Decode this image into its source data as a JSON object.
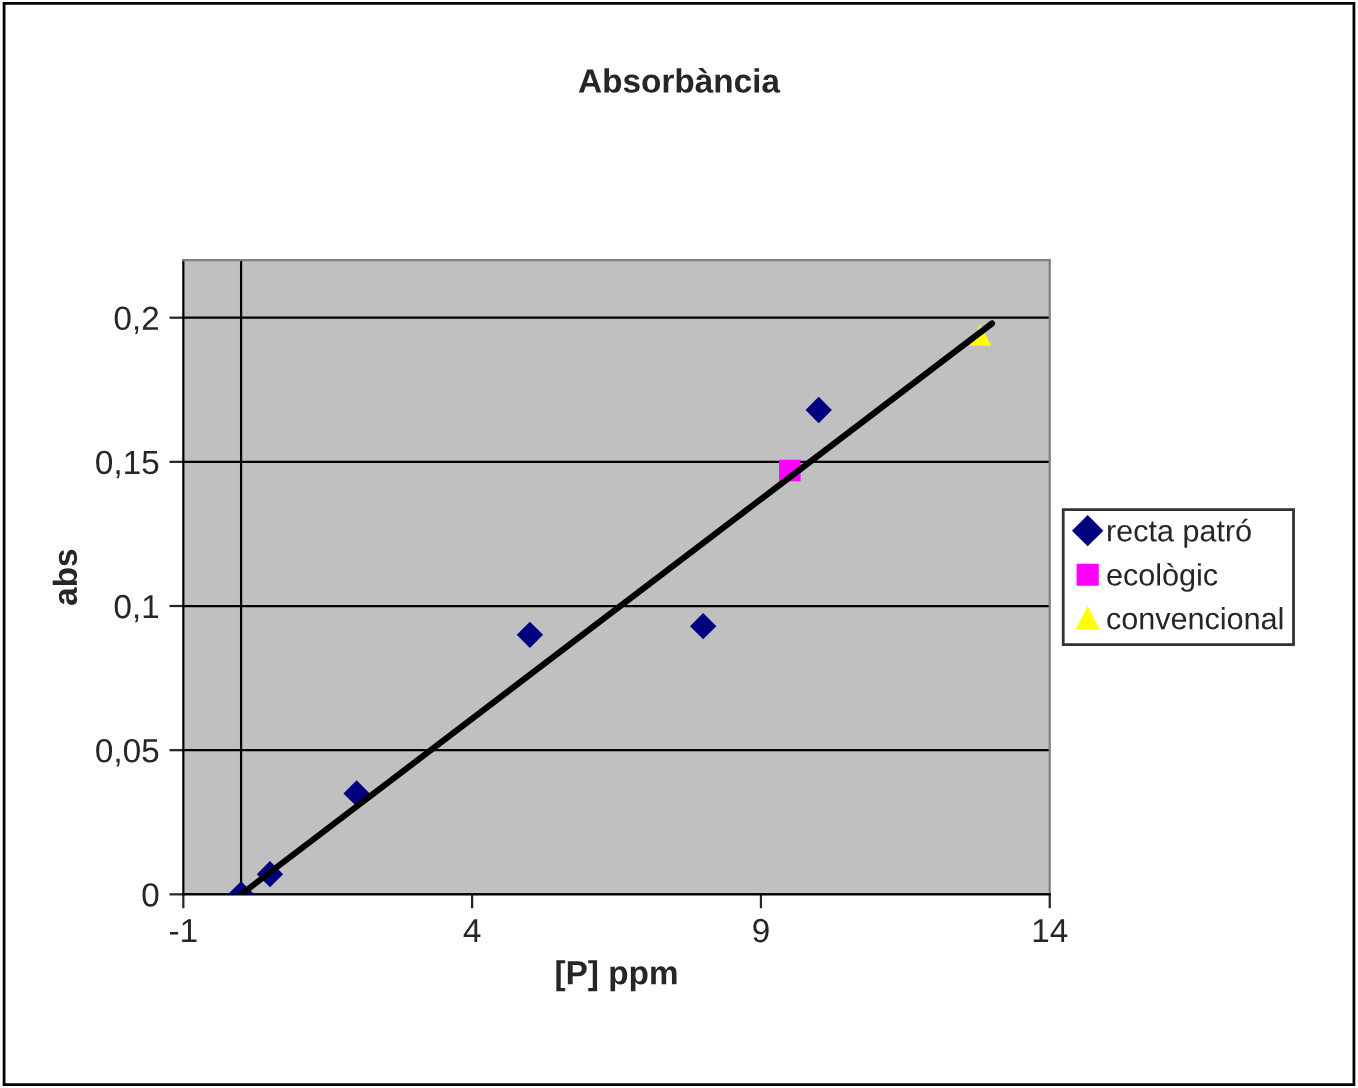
{
  "chart_data": {
    "type": "scatter",
    "title": "Absorbància",
    "xlabel": "[P] ppm",
    "ylabel": "abs",
    "xlim": [
      -1,
      14
    ],
    "xticks": [
      -1,
      4,
      9,
      14
    ],
    "ylim": [
      0,
      0.22
    ],
    "yticks": [
      {
        "value": 0,
        "label": "0"
      },
      {
        "value": 0.05,
        "label": "0,05"
      },
      {
        "value": 0.1,
        "label": "0,1"
      },
      {
        "value": 0.15,
        "label": "0,15"
      },
      {
        "value": 0.2,
        "label": "0,2"
      }
    ],
    "grid": "y",
    "legend": "right",
    "ref_lines": [
      {
        "axis": "x",
        "value": 0,
        "color": "#000000"
      }
    ],
    "series": [
      {
        "name": "recta patró",
        "color": "#000080",
        "marker": "diamond",
        "x": [
          0,
          0.5,
          2,
          5,
          8,
          10
        ],
        "values": [
          0,
          0.007,
          0.035,
          0.09,
          0.093,
          0.168
        ]
      },
      {
        "name": "ecològic",
        "color": "#ff00ff",
        "marker": "square",
        "x": [
          9.5
        ],
        "values": [
          0.147
        ]
      },
      {
        "name": "convencional",
        "color": "#ffff00",
        "marker": "triangle",
        "x": [
          12.8
        ],
        "values": [
          0.194
        ]
      },
      {
        "type": "line",
        "color": "#000000",
        "marker": "none",
        "x": [
          0,
          13
        ],
        "values": [
          0,
          0.198
        ]
      }
    ]
  }
}
